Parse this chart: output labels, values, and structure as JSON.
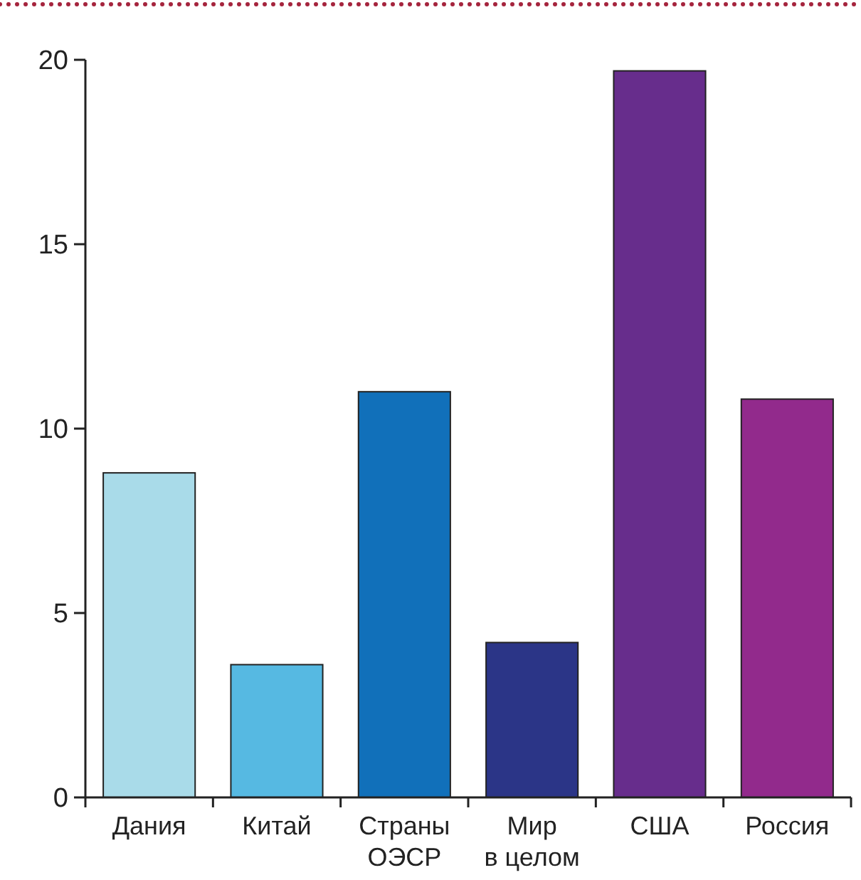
{
  "chart_data": {
    "type": "bar",
    "categories": [
      "Дания",
      "Китай",
      "Страны ОЭСР",
      "Мир в целом",
      "США",
      "Россия"
    ],
    "values": [
      8.8,
      3.6,
      11.0,
      4.2,
      19.7,
      10.8
    ],
    "colors": [
      "#a9dbe9",
      "#56b9e2",
      "#1170ba",
      "#2b3587",
      "#672d8c",
      "#922a8c"
    ],
    "ylim": [
      0,
      20
    ],
    "yticks": [
      0,
      5,
      10,
      15,
      20
    ],
    "grid": false
  }
}
